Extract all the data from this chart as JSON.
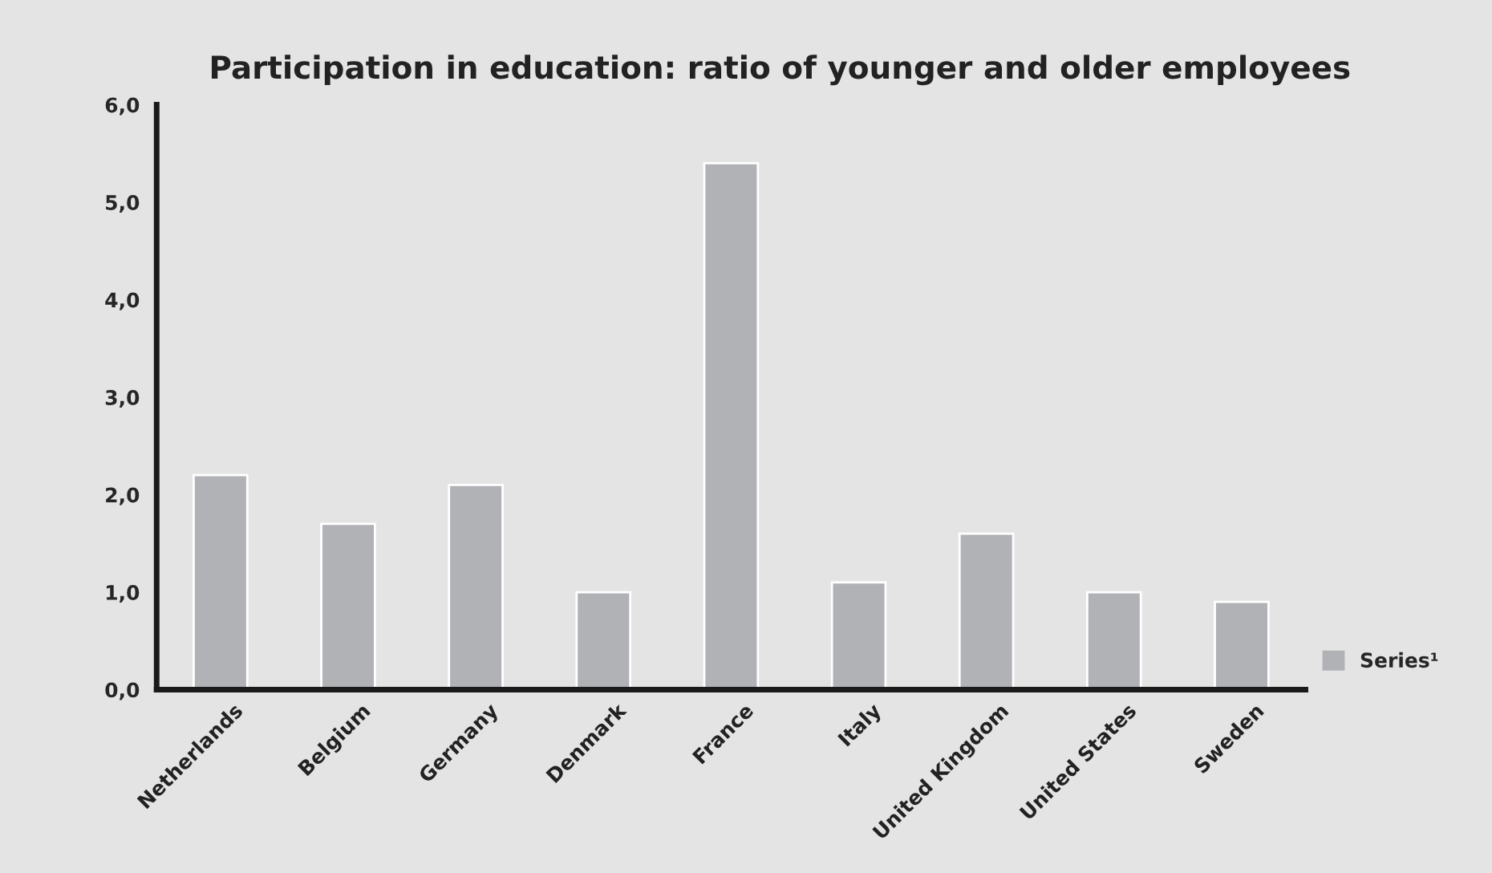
{
  "chart_data": {
    "type": "bar",
    "title": "Participation in education: ratio of younger and older employees",
    "categories": [
      "Netherlands",
      "Belgium",
      "Germany",
      "Denmark",
      "France",
      "Italy",
      "United Kingdom",
      "United States",
      "Sweden"
    ],
    "series": [
      {
        "name": "Series¹",
        "color": "#b1b2b5",
        "values": [
          2.2,
          1.7,
          2.1,
          1.0,
          5.4,
          1.1,
          1.6,
          1.0,
          0.9
        ]
      }
    ],
    "ylim": [
      0,
      6
    ],
    "yticks": [
      {
        "value": 0,
        "label": "0,0"
      },
      {
        "value": 1,
        "label": "1,0"
      },
      {
        "value": 2,
        "label": "2,0"
      },
      {
        "value": 3,
        "label": "3,0"
      },
      {
        "value": 4,
        "label": "4,0"
      },
      {
        "value": 5,
        "label": "5,0"
      },
      {
        "value": 6,
        "label": "6,0"
      }
    ],
    "legend": "right",
    "grid": false
  }
}
